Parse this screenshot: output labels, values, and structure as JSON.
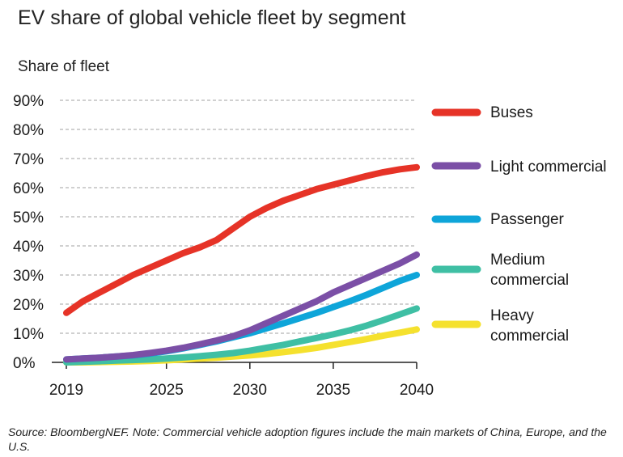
{
  "chart_data": {
    "type": "line",
    "title": "EV share of global vehicle fleet by segment",
    "ylabel": "Share of fleet",
    "xlabel": "",
    "x_ticks": [
      "2019",
      "2025",
      "2030",
      "2035",
      "2040"
    ],
    "x_tick_values": [
      2019,
      2025,
      2030,
      2035,
      2040
    ],
    "xlim": [
      2019,
      2040
    ],
    "ylim": [
      0,
      90
    ],
    "y_ticks": [
      "0%",
      "10%",
      "20%",
      "30%",
      "40%",
      "50%",
      "60%",
      "70%",
      "80%",
      "90%"
    ],
    "y_tick_values": [
      0,
      10,
      20,
      30,
      40,
      50,
      60,
      70,
      80,
      90
    ],
    "grid": true,
    "legend_position": "right",
    "x": [
      2019,
      2020,
      2021,
      2022,
      2023,
      2024,
      2025,
      2026,
      2027,
      2028,
      2029,
      2030,
      2031,
      2032,
      2033,
      2034,
      2035,
      2036,
      2037,
      2038,
      2039,
      2040
    ],
    "series": [
      {
        "name": "Buses",
        "legend_lines": [
          "Buses"
        ],
        "color": "#e63327",
        "values": [
          17,
          21,
          24,
          27,
          30,
          32.5,
          35,
          37.5,
          39.5,
          42,
          46,
          50,
          53,
          55.5,
          57.5,
          59.5,
          61,
          62.5,
          64,
          65.3,
          66.3,
          67
        ]
      },
      {
        "name": "Light commercial",
        "legend_lines": [
          "Light commercial"
        ],
        "color": "#7b4fa6",
        "values": [
          1,
          1.3,
          1.6,
          2,
          2.5,
          3.2,
          4,
          5,
          6.2,
          7.5,
          9,
          11,
          13.5,
          16,
          18.5,
          21,
          24,
          26.5,
          29,
          31.5,
          34,
          37
        ]
      },
      {
        "name": "Passenger",
        "legend_lines": [
          "Passenger"
        ],
        "color": "#0ea5d9",
        "values": [
          1,
          1.3,
          1.6,
          2,
          2.4,
          3,
          3.8,
          4.8,
          6,
          7.2,
          8.6,
          10,
          11.7,
          13.4,
          15.2,
          17,
          19,
          21,
          23.2,
          25.6,
          28,
          30
        ]
      },
      {
        "name": "Medium commercial",
        "legend_lines": [
          "Medium",
          "commercial"
        ],
        "color": "#3fbfa4",
        "values": [
          0,
          0.2,
          0.4,
          0.6,
          0.8,
          1,
          1.3,
          1.7,
          2.1,
          2.6,
          3.2,
          4,
          5,
          6,
          7.2,
          8.4,
          9.6,
          11,
          12.6,
          14.5,
          16.5,
          18.5
        ]
      },
      {
        "name": "Heavy commercial",
        "legend_lines": [
          "Heavy",
          "commercial"
        ],
        "color": "#f5e12e",
        "values": [
          0,
          0,
          0.1,
          0.2,
          0.3,
          0.5,
          0.7,
          1,
          1.3,
          1.6,
          2,
          2.4,
          2.9,
          3.5,
          4.2,
          5,
          6,
          7,
          8,
          9.2,
          10.2,
          11.3
        ]
      }
    ]
  },
  "footer": {
    "source_note": "Source: BloombergNEF. Note: Commercial vehicle adoption figures include the main markets of China, Europe, and the U.S."
  }
}
